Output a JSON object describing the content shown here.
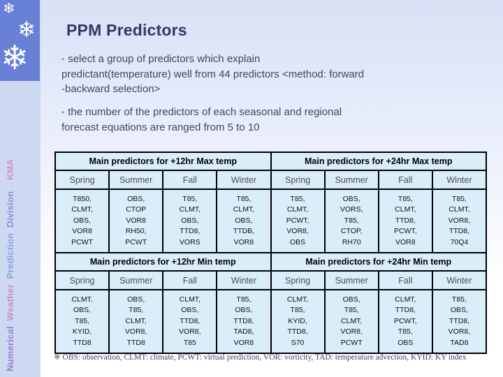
{
  "slide": {
    "title": "PPM Predictors",
    "bullet_glyph": "•",
    "bullets": [
      "select a group of predictors which explain\npredictant(temperature) well  from 44 predictors <method: forward\n-backward selection>",
      "the number of the predictors of each seasonal and regional\nforecast equations are ranged from 5 to 10"
    ],
    "footnote": "※ OBS: observation, CLMT: climate,  PCWT: virtual prediction, VOR: vorticity, TAD: temperature advection, KYID: KY index"
  },
  "sidebar": {
    "snowflake_glyph": "❄",
    "vertical_text_segments": [
      {
        "text": "Numerical",
        "color": "#9d7fd2"
      },
      {
        "text": "Weather",
        "color": "#c98fd2"
      },
      {
        "text": "Prediction",
        "color": "#90a2e2"
      },
      {
        "text": "Division",
        "color": "#9a8ed8"
      },
      {
        "text": "KMA",
        "color": "#d490c8"
      }
    ]
  },
  "tables": {
    "seasons": [
      "Spring",
      "Summer",
      "Fall",
      "Winter"
    ],
    "max": {
      "group_headers": [
        "Main predictors for +12hr Max temp",
        "Main predictors for +24hr Max temp"
      ],
      "cells": [
        "T850,\nCLMT,\nOBS,\nVOR8\nPCWT",
        "OBS,\nCTOP\nVOR8\nRH50,\nPCWT",
        "T85,\nCLMT,\nOBS,\nTTD8,\nVORS",
        "T85,\nCLMT,\nOBS,\nTTDB,\nVOR8",
        "T85,\nCLMT,\nPCWT,\nVOR8,\nOBS",
        "OBS,\nVORS,\nT85,\nCTOP,\nRH70",
        "T85,\nCLMT,\nTTD8,\nPCWT,\nVOR8",
        "T85,\nCLMT,\nVOR8,\nTTD8,\n70Q4"
      ]
    },
    "min": {
      "group_headers": [
        "Main predictors for +12hr Min temp",
        "Main predictors for +24hr Min temp"
      ],
      "cells": [
        "CLMT,\nOBS,\nT85,\nKYID,\nTTD8",
        "OBS,\nT85,\nCLMT,\nVOR8,\nTTD8",
        "CLMT,\nOBS,\nTTD8,\nVOR8,\nT85",
        "T85,\nOBS,\nTTD8,\nTAD8,\nVOR8",
        "CLMT,\nT85,\nKYID,\nTTD8,\nS70",
        "OBS,\nT85,\nCLMT,\nVOR8,\nPCWT",
        "CLMT,\nTTD8,\nPCWT,\nT85,\nOBS",
        "T85,\nOBS,\nTTD8,\nVOR8,\nTAD8"
      ]
    }
  },
  "colors": {
    "box_blue": "#6880d6",
    "strip": "#ccd9f1",
    "page_top": "#d9e1f6",
    "cell_bg": "#daeefa",
    "border": "#000000",
    "title": "#333866",
    "body": "#3f4666",
    "season": "#4c4c4c",
    "cell_text": "#101010",
    "foot": "#3d3d62",
    "bullet_dot": "#8d97bb"
  }
}
